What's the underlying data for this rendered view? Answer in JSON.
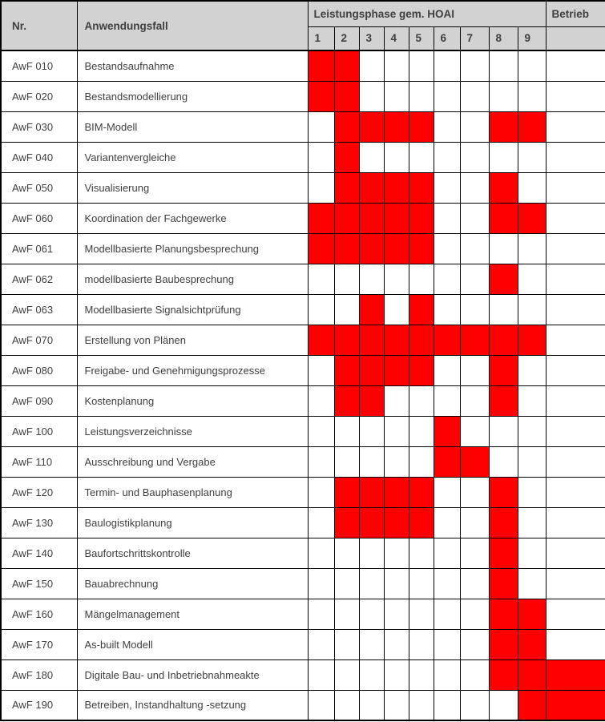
{
  "table": {
    "header": {
      "nr_label": "Nr.",
      "anwendungsfall_label": "Anwendungsfall",
      "phase_group_label": "Leistungsphase gem. HOAI",
      "betrieb_label": "Betrieb",
      "phase_columns": [
        "1",
        "2",
        "3",
        "4",
        "5",
        "6",
        "7",
        "8",
        "9"
      ]
    },
    "colors": {
      "header_bg": "#d2d2d2",
      "filled_cell": "#ff0000",
      "empty_cell": "#ffffff",
      "border": "#000000",
      "text": "#3f3f3f"
    },
    "rows": [
      {
        "nr": "AwF 010",
        "label": "Bestandsaufnahme",
        "phases": [
          1,
          2
        ],
        "betrieb": false
      },
      {
        "nr": "AwF 020",
        "label": "Bestandsmodellierung",
        "phases": [
          1,
          2
        ],
        "betrieb": false
      },
      {
        "nr": "AwF 030",
        "label": "BIM-Modell",
        "phases": [
          2,
          3,
          4,
          5,
          8,
          9
        ],
        "betrieb": false
      },
      {
        "nr": "AwF 040",
        "label": "Variantenvergleiche",
        "phases": [
          2
        ],
        "betrieb": false
      },
      {
        "nr": "AwF 050",
        "label": "Visualisierung",
        "phases": [
          2,
          3,
          4,
          5,
          8
        ],
        "betrieb": false
      },
      {
        "nr": "AwF 060",
        "label": "Koordination der Fachgewerke",
        "phases": [
          1,
          2,
          3,
          4,
          5,
          8,
          9
        ],
        "betrieb": false
      },
      {
        "nr": "AwF 061",
        "label": "Modellbasierte Planungsbesprechung",
        "phases": [
          1,
          2,
          3,
          4,
          5
        ],
        "betrieb": false
      },
      {
        "nr": "AwF 062",
        "label": "modellbasierte Baubesprechung",
        "phases": [
          8
        ],
        "betrieb": false
      },
      {
        "nr": "AwF 063",
        "label": "Modellbasierte Signalsichtprüfung",
        "phases": [
          3,
          5
        ],
        "betrieb": false
      },
      {
        "nr": "AwF 070",
        "label": "Erstellung von Plänen",
        "phases": [
          1,
          2,
          3,
          4,
          5,
          6,
          7,
          8,
          9
        ],
        "betrieb": false
      },
      {
        "nr": "AwF 080",
        "label": "Freigabe- und Genehmigungsprozesse",
        "phases": [
          2,
          3,
          4,
          5,
          8
        ],
        "betrieb": false
      },
      {
        "nr": "AwF 090",
        "label": "Kostenplanung",
        "phases": [
          2,
          3,
          8
        ],
        "betrieb": false
      },
      {
        "nr": "AwF 100",
        "label": "Leistungsverzeichnisse",
        "phases": [
          6
        ],
        "betrieb": false
      },
      {
        "nr": "AwF 110",
        "label": "Ausschreibung und Vergabe",
        "phases": [
          6,
          7
        ],
        "betrieb": false
      },
      {
        "nr": "AwF 120",
        "label": "Termin- und Bauphasenplanung",
        "phases": [
          2,
          3,
          4,
          5,
          8
        ],
        "betrieb": false
      },
      {
        "nr": "AwF 130",
        "label": "Baulogistikplanung",
        "phases": [
          2,
          3,
          4,
          5,
          8
        ],
        "betrieb": false
      },
      {
        "nr": "AwF 140",
        "label": "Baufortschrittskontrolle",
        "phases": [
          8
        ],
        "betrieb": false
      },
      {
        "nr": "AwF 150",
        "label": "Bauabrechnung",
        "phases": [
          8
        ],
        "betrieb": false
      },
      {
        "nr": "AwF 160",
        "label": "Mängelmanagement",
        "phases": [
          8,
          9
        ],
        "betrieb": false
      },
      {
        "nr": "AwF 170",
        "label": "As-built Modell",
        "phases": [
          8,
          9
        ],
        "betrieb": false
      },
      {
        "nr": "AwF 180",
        "label": "Digitale Bau- und Inbetriebnahmeakte",
        "phases": [
          8,
          9
        ],
        "betrieb": true
      },
      {
        "nr": "AwF 190",
        "label": "Betreiben, Instandhaltung -setzung",
        "phases": [
          9
        ],
        "betrieb": true
      }
    ]
  }
}
